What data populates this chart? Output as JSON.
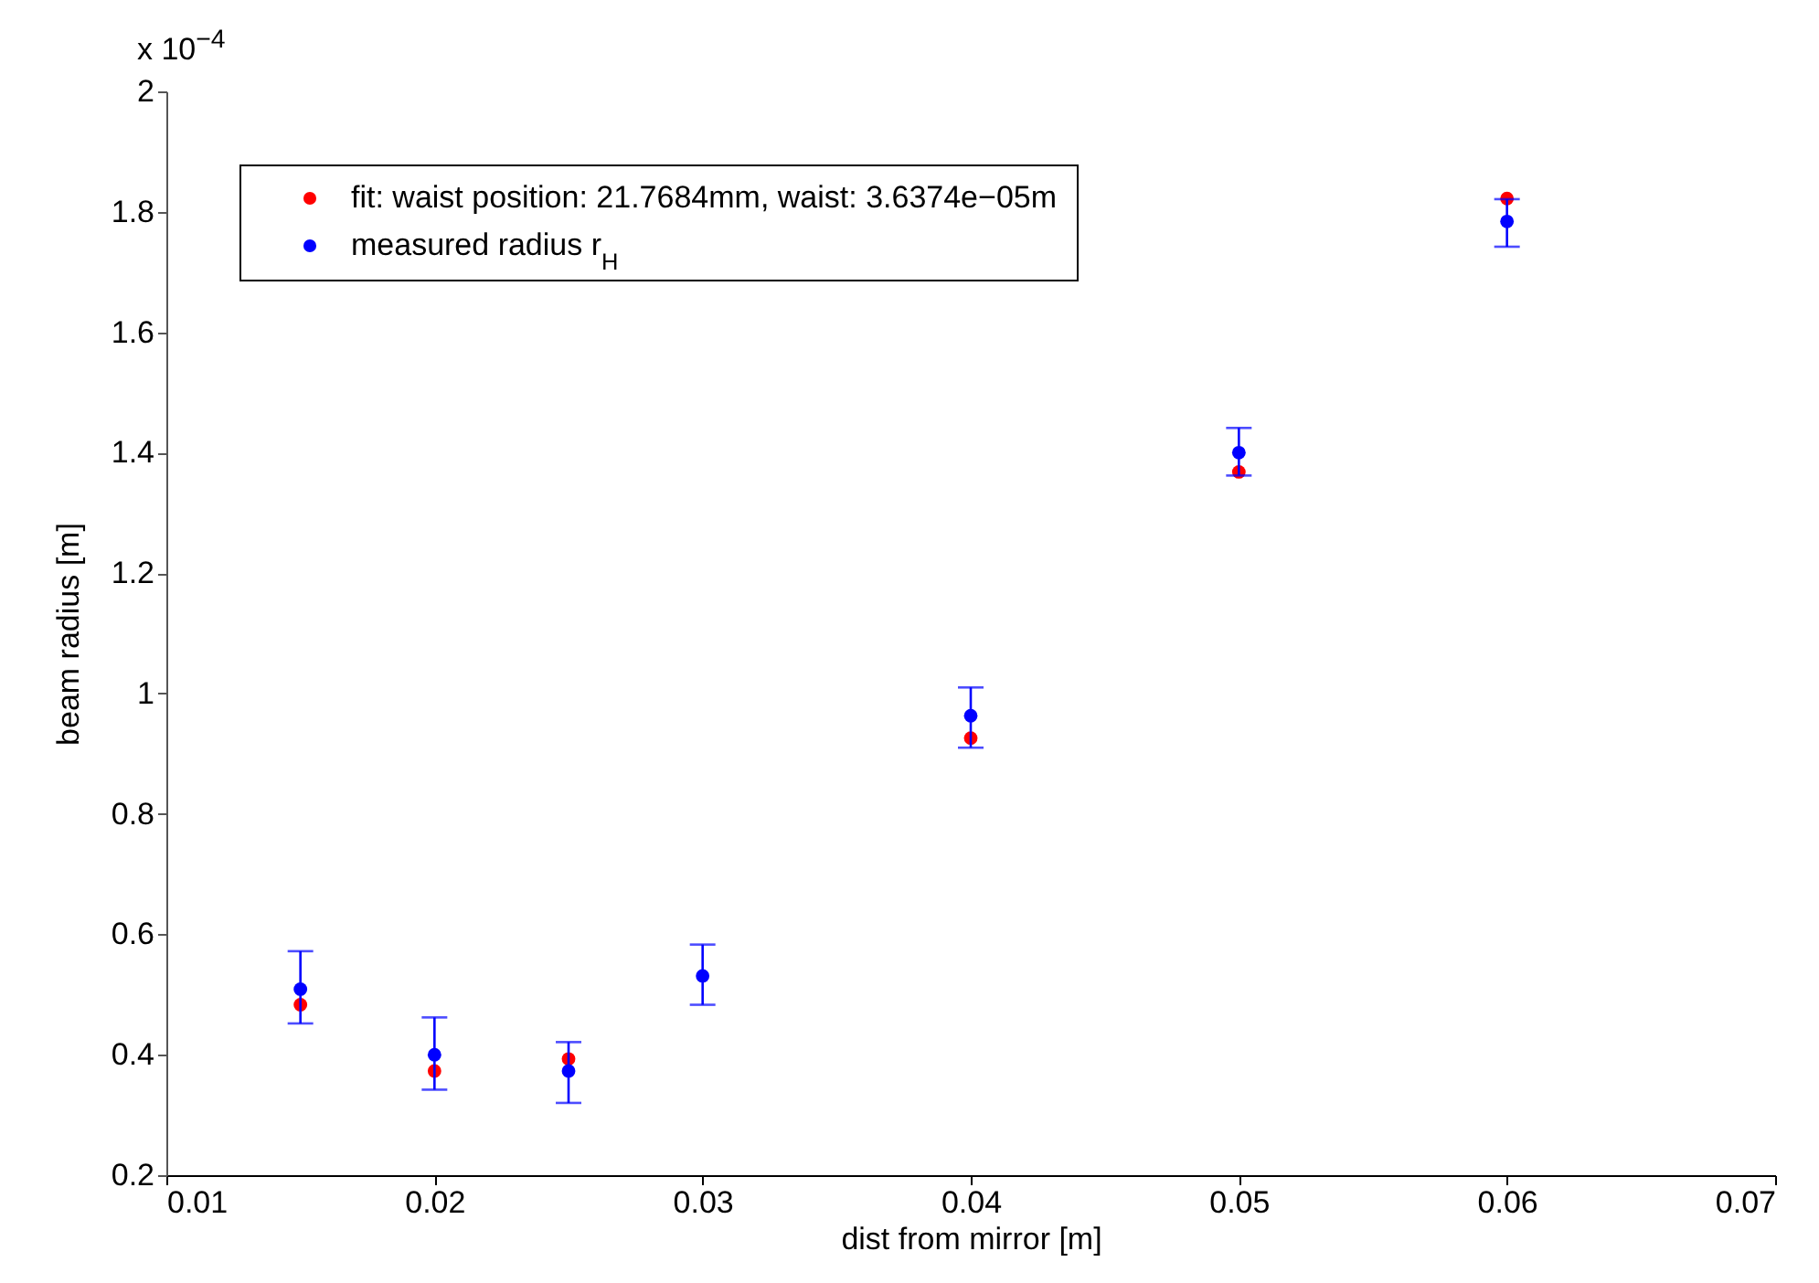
{
  "chart_data": {
    "type": "scatter",
    "xlabel": "dist from mirror [m]",
    "ylabel": "beam radius [m]",
    "annotations": [
      "x 10$^{−4}$"
    ],
    "x": [
      0.015,
      0.02,
      0.025,
      0.03,
      0.04,
      0.05,
      0.06
    ],
    "series": [
      {
        "name": "fit: waist position: 21.7684mm, waist: 3.6374e−05m",
        "color": "#ff0000",
        "values": [
          0.483,
          0.373,
          0.393,
          null,
          0.926,
          1.368,
          1.822
        ]
      },
      {
        "name": "measured radius r$_{H}$",
        "color": "#0000ff",
        "values": [
          0.509,
          0.4,
          0.373,
          0.531,
          0.963,
          1.4,
          1.784
        ],
        "errors": [
          [
            0.452,
            0.572
          ],
          [
            0.342,
            0.462
          ],
          [
            0.32,
            0.421
          ],
          [
            0.483,
            0.583
          ],
          [
            0.91,
            1.01
          ],
          [
            1.362,
            1.441
          ],
          [
            1.742,
            1.821
          ]
        ]
      }
    ],
    "xlim": [
      0.01,
      0.07
    ],
    "xticks": [
      0.01,
      0.02,
      0.03,
      0.04,
      0.05,
      0.06,
      0.07
    ],
    "ylim": [
      0.2,
      2
    ],
    "yticks": [
      0.2,
      0.4,
      0.6,
      0.8,
      1,
      1.2,
      1.4,
      1.6,
      1.8,
      2
    ],
    "legend": "top left",
    "marker": "circle"
  }
}
